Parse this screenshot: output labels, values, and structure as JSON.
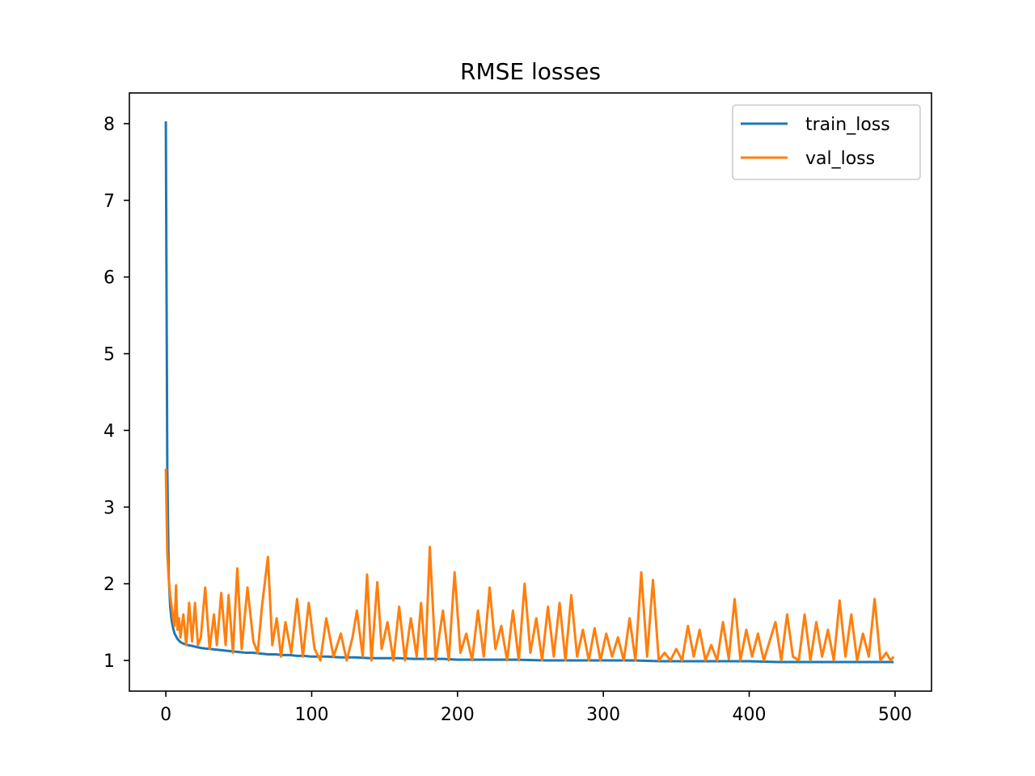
{
  "chart_data": {
    "type": "line",
    "title": "RMSE losses",
    "xlabel": "",
    "ylabel": "",
    "xlim": [
      -25,
      525
    ],
    "ylim": [
      0.6,
      8.4
    ],
    "xticks": [
      0,
      100,
      200,
      300,
      400,
      500
    ],
    "yticks": [
      1,
      2,
      3,
      4,
      5,
      6,
      7,
      8
    ],
    "grid": false,
    "legend_position": "top-right",
    "series": [
      {
        "name": "train_loss",
        "color": "#1f77b4",
        "x": [
          0,
          1,
          2,
          3,
          4,
          5,
          6,
          8,
          10,
          12,
          15,
          18,
          20,
          25,
          30,
          35,
          40,
          45,
          50,
          55,
          60,
          65,
          70,
          75,
          80,
          85,
          90,
          95,
          100,
          110,
          120,
          130,
          140,
          150,
          160,
          170,
          180,
          190,
          200,
          220,
          240,
          260,
          280,
          300,
          320,
          340,
          360,
          380,
          400,
          420,
          440,
          460,
          480,
          499
        ],
        "values": [
          8.03,
          3.5,
          2.1,
          1.7,
          1.52,
          1.42,
          1.35,
          1.28,
          1.24,
          1.22,
          1.2,
          1.19,
          1.18,
          1.16,
          1.15,
          1.14,
          1.13,
          1.12,
          1.11,
          1.1,
          1.1,
          1.09,
          1.08,
          1.08,
          1.07,
          1.07,
          1.06,
          1.06,
          1.05,
          1.05,
          1.04,
          1.04,
          1.03,
          1.03,
          1.03,
          1.02,
          1.02,
          1.02,
          1.01,
          1.01,
          1.01,
          1.0,
          1.0,
          1.0,
          1.0,
          0.99,
          0.99,
          0.99,
          0.99,
          0.98,
          0.98,
          0.98,
          0.98,
          0.98
        ]
      },
      {
        "name": "val_loss",
        "color": "#ff7f0e",
        "x": [
          0,
          1,
          2,
          3,
          4,
          5,
          6,
          7,
          8,
          9,
          10,
          12,
          14,
          16,
          18,
          20,
          22,
          24,
          27,
          30,
          33,
          35,
          38,
          41,
          43,
          46,
          49,
          52,
          56,
          60,
          63,
          66,
          70,
          73,
          76,
          79,
          82,
          86,
          90,
          94,
          98,
          102,
          106,
          110,
          115,
          120,
          124,
          128,
          131,
          135,
          138,
          141,
          145,
          148,
          152,
          156,
          160,
          164,
          168,
          172,
          175,
          178,
          181,
          185,
          190,
          194,
          198,
          202,
          206,
          210,
          214,
          218,
          222,
          226,
          230,
          234,
          238,
          242,
          246,
          250,
          254,
          258,
          262,
          266,
          270,
          274,
          278,
          282,
          286,
          290,
          294,
          298,
          302,
          306,
          310,
          314,
          318,
          322,
          326,
          330,
          334,
          338,
          342,
          346,
          350,
          354,
          358,
          362,
          366,
          370,
          374,
          378,
          382,
          386,
          390,
          394,
          398,
          402,
          406,
          410,
          414,
          418,
          422,
          426,
          430,
          434,
          438,
          442,
          446,
          450,
          454,
          458,
          462,
          466,
          470,
          474,
          478,
          482,
          486,
          490,
          494,
          497,
          499
        ],
        "values": [
          3.5,
          2.4,
          2.05,
          1.85,
          1.7,
          1.55,
          1.45,
          1.98,
          1.4,
          1.55,
          1.3,
          1.6,
          1.2,
          1.75,
          1.25,
          1.75,
          1.2,
          1.3,
          1.95,
          1.15,
          1.6,
          1.2,
          1.88,
          1.2,
          1.85,
          1.1,
          2.2,
          1.15,
          1.95,
          1.25,
          1.1,
          1.72,
          2.35,
          1.2,
          1.55,
          1.05,
          1.5,
          1.1,
          1.8,
          1.05,
          1.75,
          1.15,
          1.0,
          1.55,
          1.05,
          1.35,
          1.0,
          1.3,
          1.65,
          1.05,
          2.12,
          1.0,
          2.02,
          1.15,
          1.5,
          1.0,
          1.7,
          1.0,
          1.55,
          1.05,
          1.75,
          1.02,
          2.48,
          1.0,
          1.65,
          1.0,
          2.15,
          1.1,
          1.35,
          1.0,
          1.65,
          1.05,
          1.95,
          1.15,
          1.45,
          1.0,
          1.65,
          1.0,
          2.0,
          1.1,
          1.55,
          1.0,
          1.7,
          1.05,
          1.75,
          1.0,
          1.85,
          1.05,
          1.4,
          1.0,
          1.42,
          1.0,
          1.35,
          1.05,
          1.3,
          1.0,
          1.55,
          1.0,
          2.15,
          1.05,
          2.05,
          1.0,
          1.1,
          1.0,
          1.15,
          1.0,
          1.45,
          1.05,
          1.4,
          1.0,
          1.2,
          1.0,
          1.5,
          1.02,
          1.8,
          1.0,
          1.4,
          1.05,
          1.35,
          1.0,
          1.25,
          1.5,
          1.0,
          1.6,
          1.05,
          1.0,
          1.6,
          1.0,
          1.5,
          1.05,
          1.4,
          1.0,
          1.78,
          1.05,
          1.6,
          1.0,
          1.35,
          1.05,
          1.8,
          1.0,
          1.1,
          1.0,
          1.05
        ]
      }
    ]
  }
}
